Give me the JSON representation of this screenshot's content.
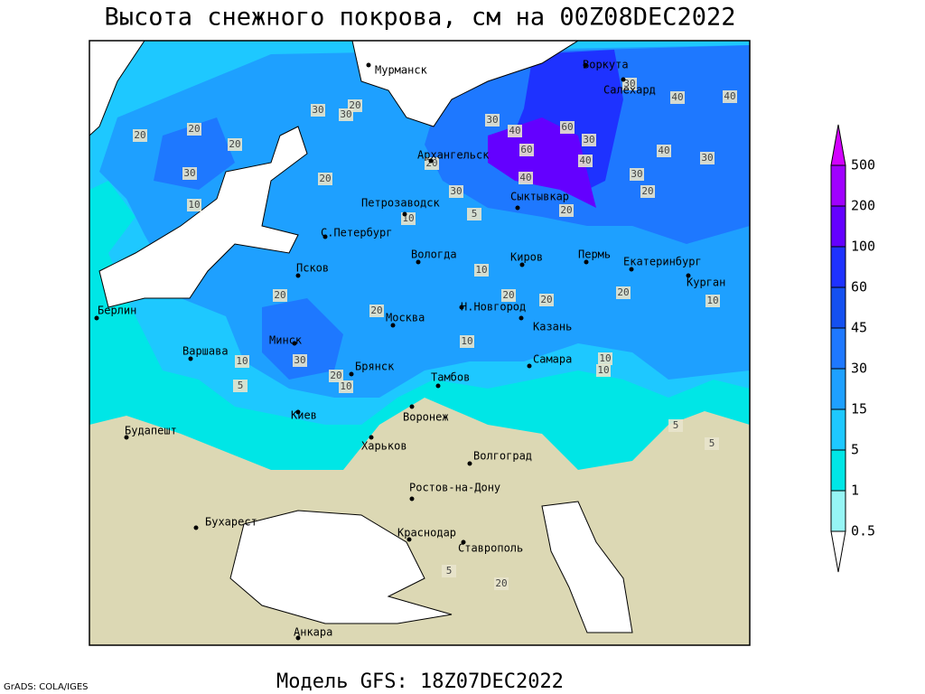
{
  "title": "Высота снежного покрова, см на 00Z08DEC2022",
  "subtitle": "Модель GFS: 18Z07DEC2022",
  "credit": "GrADS: COLA/IGES",
  "cities": [
    "Мурманск",
    "Архангельск",
    "Воркута",
    "Салехард",
    "Петрозаводск",
    "Сыктывкар",
    "С.Петербург",
    "Вологда",
    "Киров",
    "Пермь",
    "Екатеринбург",
    "Курган",
    "Псков",
    "Берлин",
    "Н.Новгород",
    "Москва",
    "Казань",
    "Минск",
    "Варшава",
    "Самара",
    "Брянск",
    "Тамбов",
    "Киев",
    "Воронеж",
    "Будапешт",
    "Харьков",
    "Волгоград",
    "Ростов-на-Дону",
    "Бухарест",
    "Краснодар",
    "Ставрополь",
    "Анкара"
  ],
  "contour_labels": [
    20,
    20,
    20,
    30,
    10,
    20,
    30,
    30,
    20,
    30,
    40,
    60,
    60,
    30,
    40,
    20,
    40,
    30,
    10,
    5,
    20,
    30,
    20,
    40,
    30,
    30,
    40,
    40,
    10,
    20,
    20,
    20,
    20,
    10,
    20,
    10,
    30,
    10,
    20,
    10,
    10,
    10,
    5,
    5,
    5,
    5,
    20
  ],
  "legend": {
    "levels": [
      0.5,
      1,
      5,
      15,
      30,
      45,
      60,
      100,
      200,
      500
    ],
    "colors": [
      "#ffffff",
      "#96f5f5",
      "#00e6e6",
      "#1ec8ff",
      "#1ea0ff",
      "#1e78ff",
      "#1450f0",
      "#1e32ff",
      "#6400ff",
      "#a000ff",
      "#d200ff"
    ]
  }
}
